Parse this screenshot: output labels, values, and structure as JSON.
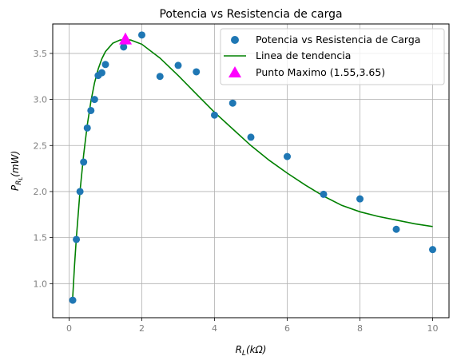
{
  "chart_data": {
    "type": "scatter",
    "title": "Potencia vs Resistencia de carga",
    "xlabel_main": "R",
    "xlabel_sub": "L",
    "xlabel_unit": "(kΩ)",
    "ylabel_main": "P",
    "ylabel_sub": "R",
    "ylabel_subsub": "L",
    "ylabel_unit": "(mW)",
    "xlim": [
      -0.45,
      10.45
    ],
    "ylim": [
      0.63,
      3.82
    ],
    "x_ticks": [
      0,
      2,
      4,
      6,
      8,
      10
    ],
    "x_tick_labels": [
      "0",
      "2",
      "4",
      "6",
      "8",
      "10"
    ],
    "y_ticks": [
      1.0,
      1.5,
      2.0,
      2.5,
      3.0,
      3.5
    ],
    "y_tick_labels": [
      "1.0",
      "1.5",
      "2.0",
      "2.5",
      "3.0",
      "3.5"
    ],
    "grid": true,
    "legend_position": "top-right",
    "series": [
      {
        "name": "Potencia vs Resistencia de Carga",
        "kind": "scatter",
        "color": "#1f77b4",
        "x": [
          0.1,
          0.2,
          0.3,
          0.4,
          0.5,
          0.6,
          0.7,
          0.8,
          0.9,
          1.0,
          1.5,
          2.0,
          2.5,
          3.0,
          3.5,
          4.0,
          4.5,
          5.0,
          6.0,
          7.0,
          8.0,
          9.0,
          10.0
        ],
        "y": [
          0.82,
          1.48,
          2.0,
          2.32,
          2.69,
          2.88,
          3.0,
          3.26,
          3.29,
          3.38,
          3.57,
          3.7,
          3.25,
          3.37,
          3.3,
          2.83,
          2.96,
          2.59,
          2.38,
          1.97,
          1.92,
          1.59,
          1.37
        ]
      },
      {
        "name": "Linea de tendencia",
        "kind": "line",
        "color": "#008000",
        "x": [
          0.1,
          0.15,
          0.2,
          0.3,
          0.4,
          0.5,
          0.6,
          0.7,
          0.8,
          0.9,
          1.0,
          1.2,
          1.4,
          1.55,
          1.7,
          2.0,
          2.5,
          3.0,
          3.5,
          4.0,
          4.5,
          5.0,
          5.5,
          6.0,
          6.5,
          7.0,
          7.5,
          8.0,
          8.5,
          9.0,
          9.5,
          10.0
        ],
        "y": [
          0.85,
          1.2,
          1.5,
          2.0,
          2.4,
          2.72,
          2.98,
          3.18,
          3.33,
          3.44,
          3.52,
          3.61,
          3.645,
          3.65,
          3.645,
          3.6,
          3.45,
          3.26,
          3.06,
          2.86,
          2.68,
          2.5,
          2.34,
          2.2,
          2.07,
          1.95,
          1.85,
          1.78,
          1.73,
          1.69,
          1.65,
          1.62
        ]
      },
      {
        "name": "Punto Maximo (1.55,3.65)",
        "kind": "marker",
        "color": "#ff00ff",
        "x": [
          1.55
        ],
        "y": [
          3.65
        ]
      }
    ]
  }
}
